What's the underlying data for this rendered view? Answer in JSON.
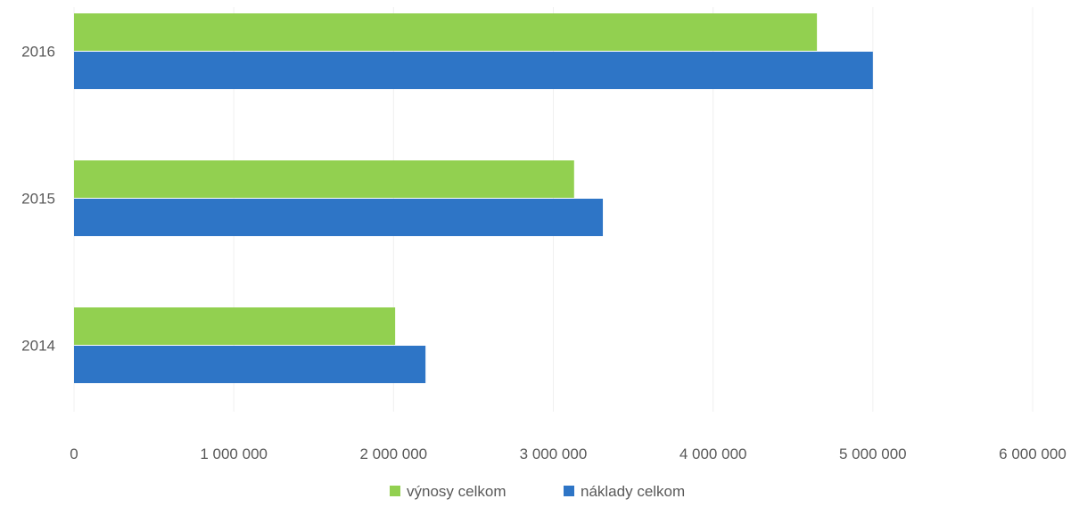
{
  "chart_data": {
    "type": "bar",
    "orientation": "horizontal",
    "categories": [
      "2014",
      "2015",
      "2016"
    ],
    "series": [
      {
        "name": "výnosy celkom",
        "color": "#92D050",
        "values": [
          2010000,
          3130000,
          4650000
        ]
      },
      {
        "name": "náklady celkom",
        "color": "#2E75C6",
        "values": [
          2200000,
          3310000,
          5000000
        ]
      }
    ],
    "xlim": [
      0,
      6000000
    ],
    "x_ticks": [
      0,
      1000000,
      2000000,
      3000000,
      4000000,
      5000000,
      6000000
    ],
    "x_tick_labels": [
      "0",
      "1 000 000",
      "2 000 000",
      "3 000 000",
      "4 000 000",
      "5 000 000",
      "6 000 000"
    ],
    "grid": true,
    "legend_position": "bottom",
    "title": "",
    "xlabel": "",
    "ylabel": ""
  }
}
